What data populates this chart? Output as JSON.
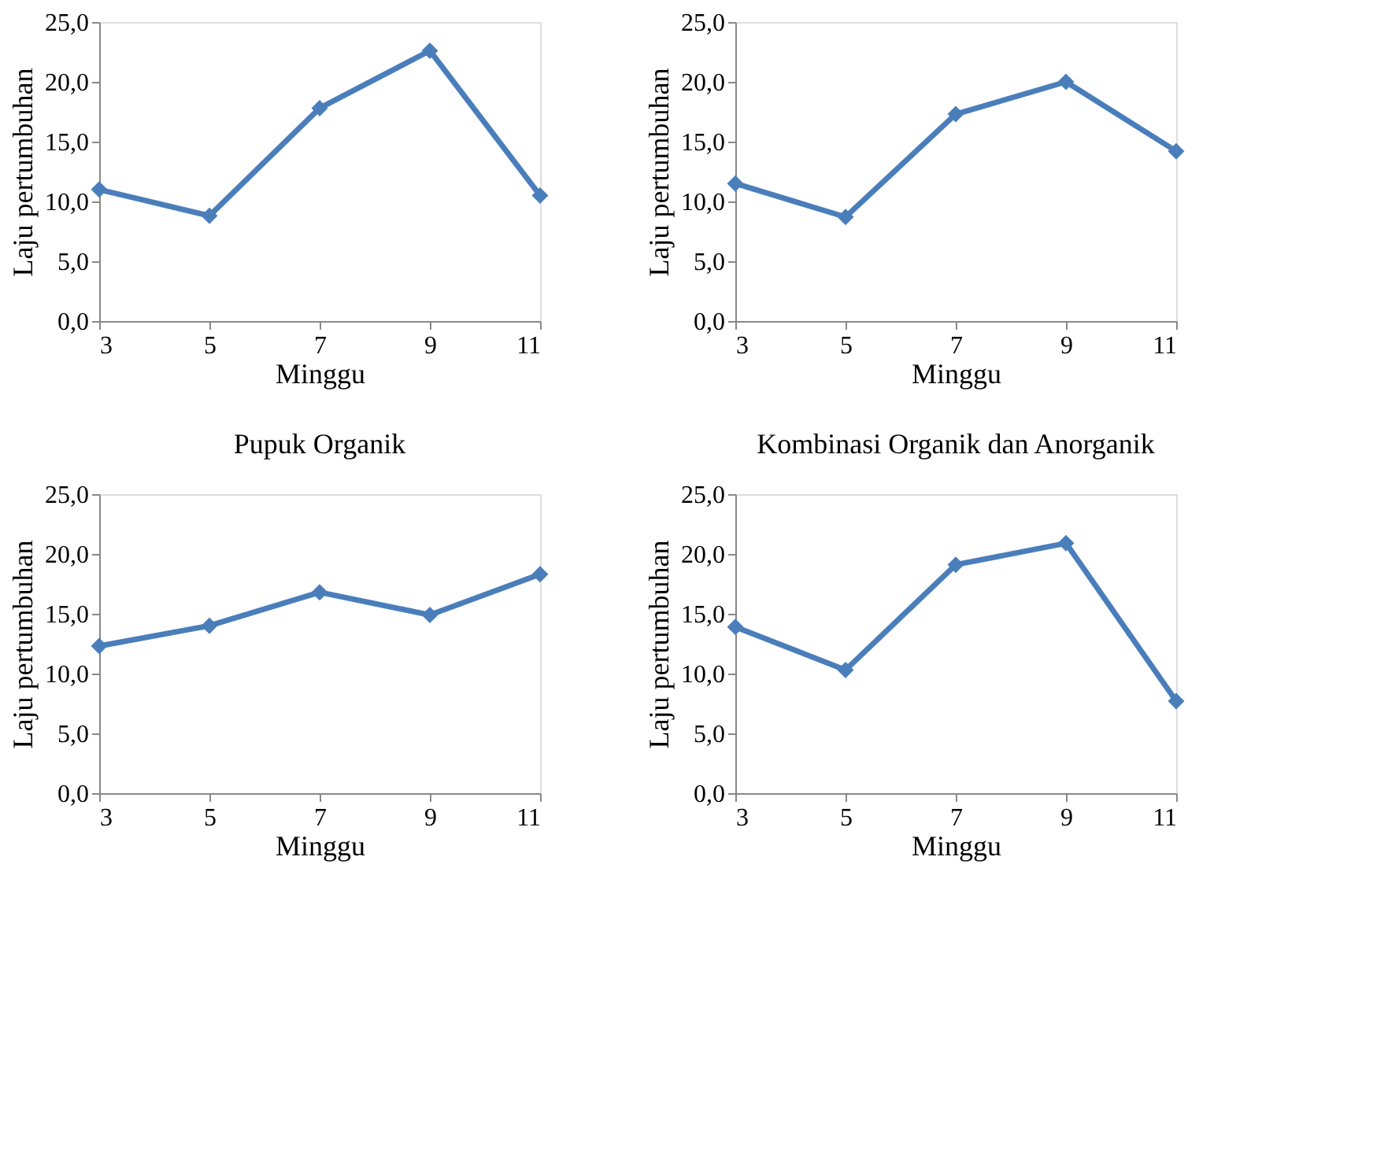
{
  "chart_data": [
    {
      "type": "line",
      "xlabel": "Minggu",
      "ylabel": "Laju pertumbuhan",
      "x": [
        3,
        5,
        7,
        9,
        11
      ],
      "series": [
        {
          "color": "#4a7ebb",
          "values": [
            11.0,
            8.8,
            17.8,
            22.6,
            10.5
          ]
        }
      ],
      "xlim": [
        3,
        11
      ],
      "xticks": [
        3,
        5,
        7,
        9,
        11
      ],
      "ylim": [
        0,
        25
      ],
      "yticks": [
        {
          "value": 0,
          "label": "0,0"
        },
        {
          "value": 5,
          "label": "5,0"
        },
        {
          "value": 10,
          "label": "10,0"
        },
        {
          "value": 15,
          "label": "15,0"
        },
        {
          "value": 20,
          "label": "20,0"
        },
        {
          "value": 25,
          "label": "25,0"
        }
      ],
      "marker": "diamond",
      "line_style": "solid",
      "grid": false
    },
    {
      "type": "line",
      "xlabel": "Minggu",
      "ylabel": "Laju pertumbuhan",
      "x": [
        3,
        5,
        7,
        9,
        11
      ],
      "series": [
        {
          "color": "#4a7ebb",
          "values": [
            11.5,
            8.7,
            17.3,
            20.0,
            14.2
          ]
        }
      ],
      "xlim": [
        3,
        11
      ],
      "xticks": [
        3,
        5,
        7,
        9,
        11
      ],
      "ylim": [
        0,
        25
      ],
      "yticks": [
        {
          "value": 0,
          "label": "0,0"
        },
        {
          "value": 5,
          "label": "5,0"
        },
        {
          "value": 10,
          "label": "10,0"
        },
        {
          "value": 15,
          "label": "15,0"
        },
        {
          "value": 20,
          "label": "20,0"
        },
        {
          "value": 25,
          "label": "25,0"
        }
      ],
      "marker": "diamond",
      "line_style": "solid",
      "grid": false
    },
    {
      "type": "line",
      "title": "Pupuk Organik",
      "xlabel": "Minggu",
      "ylabel": "Laju pertumbuhan",
      "x": [
        3,
        5,
        7,
        9,
        11
      ],
      "series": [
        {
          "color": "#4a7ebb",
          "values": [
            12.3,
            14.0,
            16.8,
            14.9,
            18.3
          ]
        }
      ],
      "xlim": [
        3,
        11
      ],
      "xticks": [
        3,
        5,
        7,
        9,
        11
      ],
      "ylim": [
        0,
        25
      ],
      "yticks": [
        {
          "value": 0,
          "label": "0,0"
        },
        {
          "value": 5,
          "label": "5,0"
        },
        {
          "value": 10,
          "label": "10,0"
        },
        {
          "value": 15,
          "label": "15,0"
        },
        {
          "value": 20,
          "label": "20,0"
        },
        {
          "value": 25,
          "label": "25,0"
        }
      ],
      "marker": "diamond",
      "line_style": "solid",
      "grid": false
    },
    {
      "type": "line",
      "title": "Kombinasi Organik dan Anorganik",
      "xlabel": "Minggu",
      "ylabel": "Laju pertumbuhan",
      "x": [
        3,
        5,
        7,
        9,
        11
      ],
      "series": [
        {
          "color": "#4a7ebb",
          "values": [
            13.9,
            10.3,
            19.1,
            20.9,
            7.7
          ]
        }
      ],
      "xlim": [
        3,
        11
      ],
      "xticks": [
        3,
        5,
        7,
        9,
        11
      ],
      "ylim": [
        0,
        25
      ],
      "yticks": [
        {
          "value": 0,
          "label": "0,0"
        },
        {
          "value": 5,
          "label": "5,0"
        },
        {
          "value": 10,
          "label": "10,0"
        },
        {
          "value": 15,
          "label": "15,0"
        },
        {
          "value": 20,
          "label": "20,0"
        },
        {
          "value": 25,
          "label": "25,0"
        }
      ],
      "marker": "diamond",
      "line_style": "solid",
      "grid": false
    }
  ]
}
